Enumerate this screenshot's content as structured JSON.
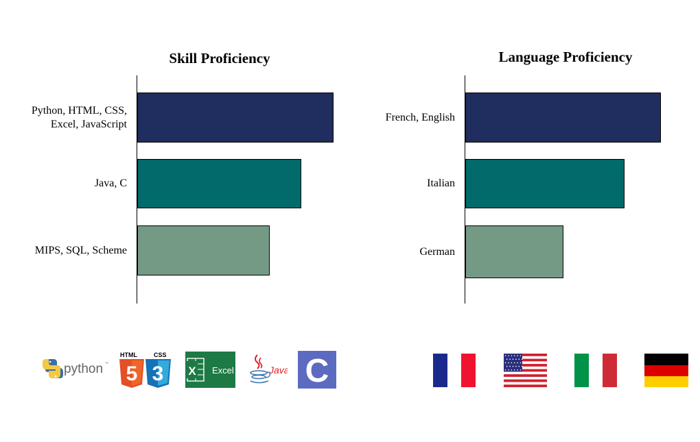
{
  "chart_data": [
    {
      "type": "bar",
      "orientation": "horizontal",
      "title": "Skill Proficiency",
      "categories": [
        "Python, HTML, CSS,\nExcel, JavaScript",
        "Java, C",
        "MIPS, SQL, Scheme"
      ],
      "values": [
        100,
        83.5,
        67.5
      ],
      "xlim": [
        0,
        100
      ],
      "colors": [
        "#1f2e5e",
        "#026a6a",
        "#749a86"
      ],
      "grid": false,
      "legend": "none"
    },
    {
      "type": "bar",
      "orientation": "horizontal",
      "title": "Language Proficiency",
      "categories": [
        "French, English",
        "Italian",
        "German"
      ],
      "values": [
        100,
        81.5,
        50
      ],
      "xlim": [
        0,
        100
      ],
      "colors": [
        "#1f2e5e",
        "#026a6a",
        "#749a86"
      ],
      "grid": false,
      "legend": "none"
    }
  ],
  "logos": {
    "python": {
      "label": "python",
      "tm": "™"
    },
    "html": {
      "label": "HTML",
      "number": "5"
    },
    "css": {
      "label": "CSS",
      "number": "3"
    },
    "excel": {
      "label": "Excel",
      "letter": "X"
    },
    "java": {
      "label": "Java"
    },
    "c": {
      "label": "C"
    }
  },
  "flags": [
    "france-flag",
    "usa-flag",
    "italy-flag",
    "germany-flag"
  ]
}
